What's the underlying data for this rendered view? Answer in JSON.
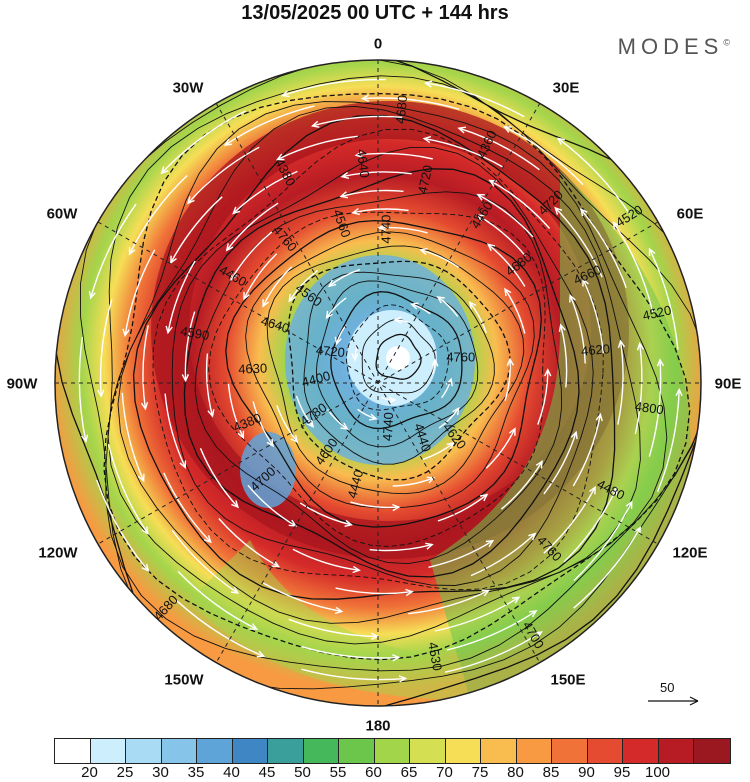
{
  "title": "13/05/2025  00 UTC  + 144 hrs",
  "brand": "MODES",
  "brand_mark": "©",
  "lon_labels": {
    "n": "0",
    "ne": "30E",
    "ene": "60E",
    "e": "90E",
    "ese": "120E",
    "se": "150E",
    "s": "180",
    "sw": "150W",
    "wsw": "120W",
    "w": "90W",
    "wnw": "60W",
    "nw": "30W"
  },
  "contour_labels": [
    "4760",
    "4700",
    "4680",
    "4620",
    "4590",
    "4520",
    "4440",
    "4380",
    "4320",
    "4380",
    "4360",
    "4440",
    "4460",
    "4520",
    "4600",
    "4640",
    "4680",
    "4630",
    "4720",
    "4740",
    "4760",
    "4800",
    "4780",
    "4720",
    "4700",
    "4640",
    "4660",
    "4620",
    "4560",
    "4480",
    "4400",
    "4460",
    "4530",
    "4560",
    "4620",
    "4680",
    "4740",
    "4760",
    "4720",
    "4680"
  ],
  "reference_vector": "50",
  "colorbar": {
    "colors": [
      "#ffffff",
      "#cdeefc",
      "#a9dcf4",
      "#86c4ea",
      "#5fa4d9",
      "#3f86c4",
      "#3a9e9a",
      "#44b85a",
      "#6cc64c",
      "#a3d54b",
      "#d4e052",
      "#f6de56",
      "#f9bd4f",
      "#f79a42",
      "#f07238",
      "#e54b30",
      "#d42a29",
      "#b71c24",
      "#9b1820"
    ],
    "ticks": [
      "20",
      "25",
      "30",
      "35",
      "40",
      "45",
      "50",
      "55",
      "60",
      "65",
      "70",
      "75",
      "80",
      "85",
      "90",
      "95",
      "100"
    ]
  },
  "colors": {
    "jet_core": "#a8161e",
    "polar_low": "#ffffff",
    "contour": "#111111",
    "wind_arrow": "#ffffff"
  }
}
